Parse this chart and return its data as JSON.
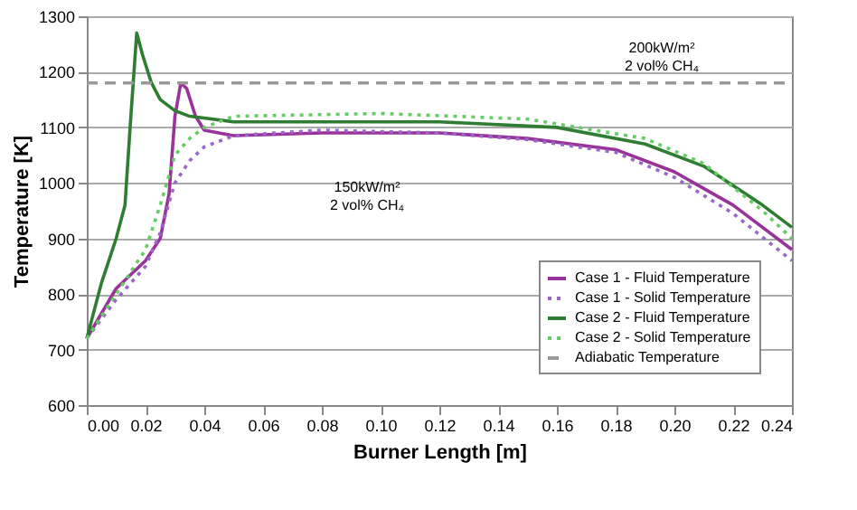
{
  "chart_data": {
    "type": "line",
    "xlabel": "Burner Length [m]",
    "ylabel": "Temperature [K]",
    "xlim": [
      0,
      0.24
    ],
    "xticks": [
      {
        "value": 0,
        "label": "0.00"
      },
      {
        "value": 0.02,
        "label": "0.02"
      },
      {
        "value": 0.04,
        "label": "0.04"
      },
      {
        "value": 0.06,
        "label": "0.06"
      },
      {
        "value": 0.08,
        "label": "0.08"
      },
      {
        "value": 0.1,
        "label": "0.10"
      },
      {
        "value": 0.12,
        "label": "0.12"
      },
      {
        "value": 0.14,
        "label": "0.14"
      },
      {
        "value": 0.16,
        "label": "0.16"
      },
      {
        "value": 0.18,
        "label": "0.18"
      },
      {
        "value": 0.2,
        "label": "0.20"
      },
      {
        "value": 0.22,
        "label": "0.22"
      },
      {
        "value": 0.24,
        "label": "0.24"
      }
    ],
    "ylim": [
      600,
      1300
    ],
    "yticks": [
      600,
      700,
      800,
      900,
      1000,
      1100,
      1200,
      1300
    ],
    "grid": "y",
    "legend": "bottom right",
    "marker": "none",
    "series": [
      {
        "name": "Case 1 - Fluid Temperature",
        "color": "#993399",
        "line_style": "solid",
        "x": [
          0,
          0.01,
          0.02,
          0.025,
          0.028,
          0.03,
          0.032,
          0.034,
          0.037,
          0.04,
          0.05,
          0.08,
          0.12,
          0.15,
          0.18,
          0.2,
          0.22,
          0.24
        ],
        "values": [
          720,
          810,
          860,
          900,
          980,
          1120,
          1180,
          1170,
          1120,
          1095,
          1085,
          1090,
          1090,
          1080,
          1060,
          1020,
          960,
          880
        ]
      },
      {
        "name": "Case 1 - Solid Temperature",
        "color": "#9966cc",
        "line_style": "dotted",
        "x": [
          0,
          0.01,
          0.02,
          0.025,
          0.03,
          0.035,
          0.04,
          0.05,
          0.08,
          0.12,
          0.15,
          0.18,
          0.2,
          0.22,
          0.24
        ],
        "values": [
          720,
          790,
          850,
          910,
          1000,
          1040,
          1065,
          1085,
          1095,
          1090,
          1078,
          1055,
          1010,
          945,
          860
        ]
      },
      {
        "name": "Case 2 - Fluid Temperature",
        "color": "#2e7d32",
        "line_style": "solid",
        "x": [
          0,
          0.005,
          0.01,
          0.013,
          0.015,
          0.017,
          0.019,
          0.022,
          0.025,
          0.03,
          0.035,
          0.05,
          0.08,
          0.12,
          0.16,
          0.19,
          0.21,
          0.23,
          0.24
        ],
        "values": [
          720,
          820,
          900,
          960,
          1120,
          1270,
          1230,
          1180,
          1150,
          1130,
          1120,
          1110,
          1110,
          1110,
          1100,
          1070,
          1030,
          960,
          920
        ]
      },
      {
        "name": "Case 2 - Solid Temperature",
        "color": "#66cc66",
        "line_style": "dotted",
        "x": [
          0,
          0.01,
          0.02,
          0.025,
          0.03,
          0.035,
          0.04,
          0.05,
          0.1,
          0.15,
          0.19,
          0.21,
          0.23,
          0.24
        ],
        "values": [
          720,
          800,
          880,
          960,
          1050,
          1080,
          1100,
          1120,
          1125,
          1115,
          1080,
          1035,
          950,
          900
        ]
      },
      {
        "name": "Adiabatic Temperature",
        "color": "#999999",
        "line_style": "dashed",
        "x": [
          0,
          0.24
        ],
        "values": [
          1180,
          1180
        ]
      }
    ],
    "annotations": [
      "200kW/m²\n2 vol% CH₄",
      "150kW/m²\n2 vol% CH₄"
    ]
  }
}
